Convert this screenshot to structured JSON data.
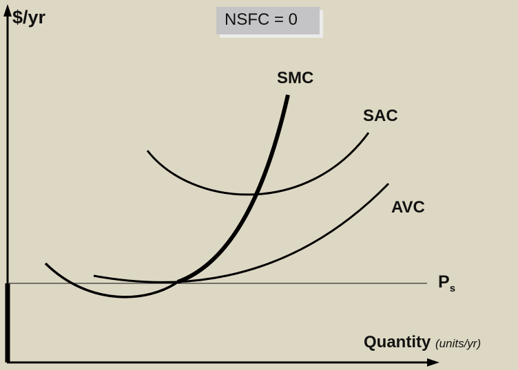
{
  "axes": {
    "y_label": "$/yr",
    "x_label": "Quantity",
    "x_units": "(units/yr)"
  },
  "note": {
    "text": "NSFC = 0"
  },
  "curves": {
    "smc": "SMC",
    "sac": "SAC",
    "avc": "AVC"
  },
  "price": {
    "main": "P",
    "sub": "s"
  }
}
